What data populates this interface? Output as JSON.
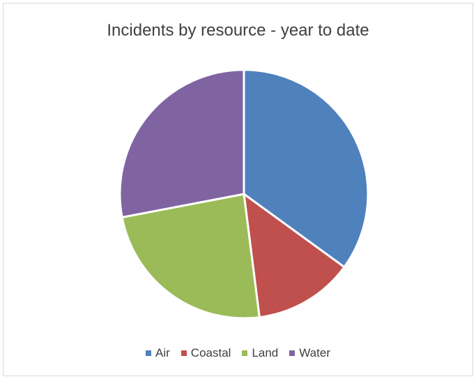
{
  "chart_data": {
    "type": "pie",
    "title": "Incidents by resource - year to date",
    "categories": [
      "Air",
      "Coastal",
      "Land",
      "Water"
    ],
    "values": [
      35,
      13,
      24,
      28
    ],
    "colors": [
      "#4f81bd",
      "#c0504d",
      "#9bbb59",
      "#8064a2"
    ],
    "start_angle_deg": 0,
    "direction": "clockwise",
    "legend_position": "bottom"
  }
}
